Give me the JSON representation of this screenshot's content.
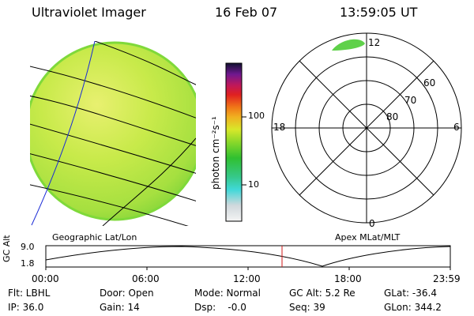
{
  "header": {
    "instrument": "Ultraviolet Imager",
    "date": "16 Feb 07",
    "time": "13:59:05 UT"
  },
  "colorbar": {
    "unit": "photon cm⁻²s⁻¹",
    "ticks": [
      "100",
      "10"
    ]
  },
  "polar": {
    "mlt_labels": {
      "top": "12",
      "left": "18",
      "right": "6",
      "bottom": "0"
    },
    "lat_labels": [
      "60",
      "70",
      "80"
    ]
  },
  "panels": {
    "left_title": "Geographic Lat/Lon",
    "right_title": "Apex MLat/MLT"
  },
  "altitude_plot": {
    "ylabel": "GC Alt",
    "yticks": [
      "9.0",
      "1.8"
    ],
    "xticks": [
      "00:00",
      "06:00",
      "12:00",
      "18:00",
      "23:59"
    ],
    "marker_time": "13:59"
  },
  "status": {
    "flt": "Flt: LBHL",
    "door": "Door: Open",
    "mode": "Mode: Normal",
    "gc_alt": "GC Alt: 5.2 Re",
    "glat": "GLat: -36.4",
    "ip": "IP: 36.0",
    "gain": "Gain: 14",
    "dsp": "Dsp:    -0.0",
    "seq": "Seq: 39",
    "glon": "GLon: 344.2"
  },
  "colors": {
    "disk_fill": "#b7e64a",
    "disk_edge": "#7fd93a",
    "polar_patch": "#5fd14a",
    "marker": "#d01818",
    "grid_blue": "#1a2bd6"
  }
}
